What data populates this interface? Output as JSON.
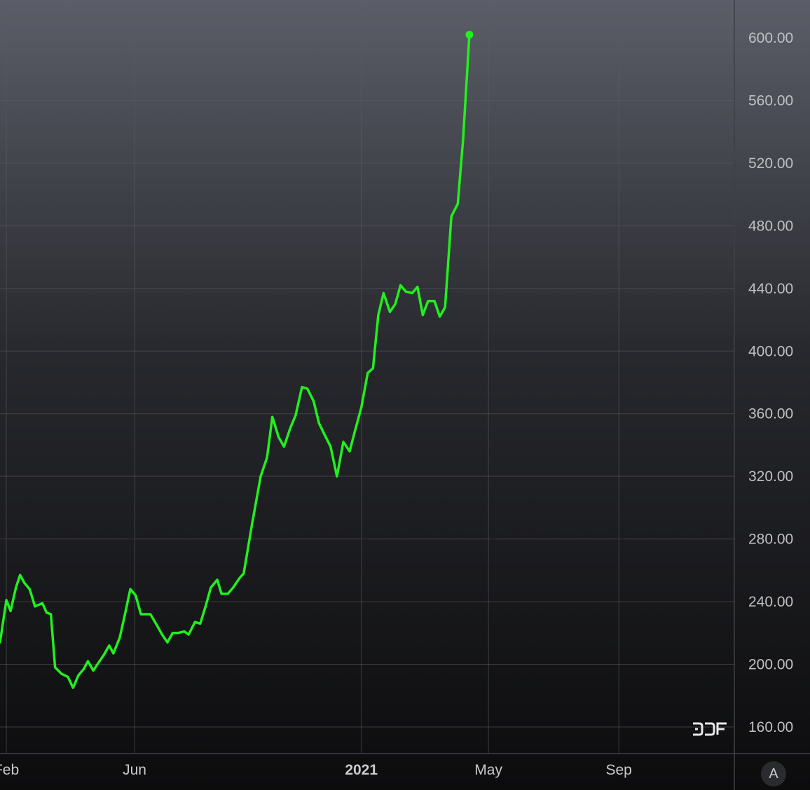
{
  "chart_data": {
    "type": "line",
    "ylim": [
      160,
      600
    ],
    "yticks": [
      "600.00",
      "560.00",
      "520.00",
      "480.00",
      "440.00",
      "400.00",
      "360.00",
      "320.00",
      "280.00",
      "240.00",
      "200.00",
      "160.00"
    ],
    "xticks": [
      {
        "label": "Feb",
        "x": "2020-02-01",
        "bold": false
      },
      {
        "label": "Jun",
        "x": "2020-06-01",
        "bold": false
      },
      {
        "label": "2021",
        "x": "2021-01-01",
        "bold": true
      },
      {
        "label": "May",
        "x": "2021-05-01",
        "bold": false
      },
      {
        "label": "Sep",
        "x": "2021-09-01",
        "bold": false
      }
    ],
    "xlim": [
      "2020-01-26",
      "2021-12-19"
    ],
    "grid": true,
    "line_color": "#22f01e",
    "series": [
      {
        "values": [
          [
            "2020-01-26",
            214
          ],
          [
            "2020-02-01",
            241
          ],
          [
            "2020-02-05",
            234
          ],
          [
            "2020-02-10",
            249
          ],
          [
            "2020-02-14",
            257
          ],
          [
            "2020-02-18",
            252
          ],
          [
            "2020-02-23",
            248
          ],
          [
            "2020-02-28",
            237
          ],
          [
            "2020-03-06",
            239
          ],
          [
            "2020-03-10",
            233
          ],
          [
            "2020-03-14",
            232
          ],
          [
            "2020-03-18",
            198
          ],
          [
            "2020-03-24",
            194
          ],
          [
            "2020-03-30",
            192
          ],
          [
            "2020-04-04",
            185
          ],
          [
            "2020-04-09",
            193
          ],
          [
            "2020-04-14",
            197
          ],
          [
            "2020-04-18",
            202
          ],
          [
            "2020-04-23",
            196
          ],
          [
            "2020-04-28",
            201
          ],
          [
            "2020-05-03",
            206
          ],
          [
            "2020-05-08",
            212
          ],
          [
            "2020-05-12",
            207
          ],
          [
            "2020-05-18",
            217
          ],
          [
            "2020-05-22",
            229
          ],
          [
            "2020-05-28",
            248
          ],
          [
            "2020-06-02",
            244
          ],
          [
            "2020-06-07",
            232
          ],
          [
            "2020-06-12",
            232
          ],
          [
            "2020-06-16",
            232
          ],
          [
            "2020-06-22",
            225
          ],
          [
            "2020-06-27",
            219
          ],
          [
            "2020-07-02",
            214
          ],
          [
            "2020-07-07",
            220
          ],
          [
            "2020-07-12",
            220
          ],
          [
            "2020-07-18",
            221
          ],
          [
            "2020-07-22",
            219
          ],
          [
            "2020-07-28",
            227
          ],
          [
            "2020-08-02",
            226
          ],
          [
            "2020-08-07",
            237
          ],
          [
            "2020-08-12",
            249
          ],
          [
            "2020-08-18",
            254
          ],
          [
            "2020-08-22",
            245
          ],
          [
            "2020-08-28",
            245
          ],
          [
            "2020-09-02",
            249
          ],
          [
            "2020-09-08",
            255
          ],
          [
            "2020-09-12",
            258
          ],
          [
            "2020-09-20",
            290
          ],
          [
            "2020-09-28",
            320
          ],
          [
            "2020-10-04",
            332
          ],
          [
            "2020-10-09",
            358
          ],
          [
            "2020-10-15",
            345
          ],
          [
            "2020-10-20",
            339
          ],
          [
            "2020-10-26",
            351
          ],
          [
            "2020-10-31",
            359
          ],
          [
            "2020-11-06",
            377
          ],
          [
            "2020-11-11",
            376
          ],
          [
            "2020-11-17",
            368
          ],
          [
            "2020-11-22",
            354
          ],
          [
            "2020-11-27",
            347
          ],
          [
            "2020-12-03",
            339
          ],
          [
            "2020-12-09",
            320
          ],
          [
            "2020-12-15",
            342
          ],
          [
            "2020-12-21",
            336
          ],
          [
            "2020-12-26",
            349
          ],
          [
            "2021-01-01",
            364
          ],
          [
            "2021-01-07",
            386
          ],
          [
            "2021-01-12",
            389
          ],
          [
            "2021-01-17",
            423
          ],
          [
            "2021-01-22",
            437
          ],
          [
            "2021-01-28",
            425
          ],
          [
            "2021-02-02",
            430
          ],
          [
            "2021-02-07",
            442
          ],
          [
            "2021-02-12",
            438
          ],
          [
            "2021-02-18",
            437
          ],
          [
            "2021-02-23",
            441
          ],
          [
            "2021-02-28",
            423
          ],
          [
            "2021-03-05",
            432
          ],
          [
            "2021-03-11",
            432
          ],
          [
            "2021-03-16",
            422
          ],
          [
            "2021-03-21",
            428
          ],
          [
            "2021-03-27",
            486
          ],
          [
            "2021-04-02",
            494
          ],
          [
            "2021-04-07",
            535
          ],
          [
            "2021-04-13",
            602
          ]
        ]
      }
    ]
  }
}
